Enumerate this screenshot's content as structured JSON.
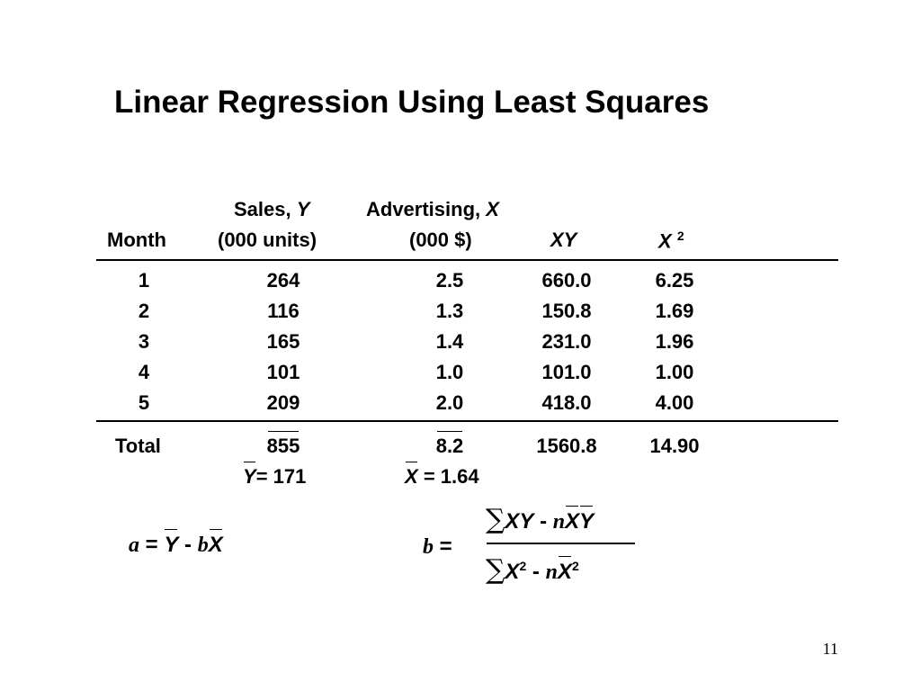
{
  "title": "Linear Regression Using Least Squares",
  "table": {
    "headers": {
      "month": "Month",
      "sales_top": "Sales,",
      "sales_var": "Y",
      "sales_unit": "(000 units)",
      "adv_top": "Advertising,",
      "adv_var": "X",
      "adv_unit": "(000 $)",
      "xy": "XY",
      "x2": "X",
      "x2_exp": "2"
    },
    "rows": [
      {
        "month": "1",
        "sales": "264",
        "adv": "2.5",
        "xy": "660.0",
        "x2": "6.25"
      },
      {
        "month": "2",
        "sales": "116",
        "adv": "1.3",
        "xy": "150.8",
        "x2": "1.69"
      },
      {
        "month": "3",
        "sales": "165",
        "adv": "1.4",
        "xy": "231.0",
        "x2": "1.96"
      },
      {
        "month": "4",
        "sales": "101",
        "adv": "1.0",
        "xy": "101.0",
        "x2": "1.00"
      },
      {
        "month": "5",
        "sales": "209",
        "adv": "2.0",
        "xy": "418.0",
        "x2": "4.00"
      }
    ],
    "total": {
      "label": "Total",
      "sales": "855",
      "adv": "8.2",
      "xy": "1560.8",
      "x2": "14.90"
    },
    "means": {
      "ybar_var": "Y",
      "ybar_val": "= 171",
      "xbar_var": "X",
      "xbar_val": "= 1.64"
    }
  },
  "formula_a": {
    "lhs": "a",
    "eq": "=",
    "ybar": "Y",
    "minus": "-",
    "b": "b",
    "xbar": "X"
  },
  "formula_b": {
    "lhs": "b",
    "eq": "=",
    "sigma": "∑",
    "num_xy": "XY",
    "num_minus": "-",
    "num_n": "n",
    "num_xbar": "X",
    "num_ybar": "Y",
    "den_x": "X",
    "den_exp": "2",
    "den_minus": "-",
    "den_n": "n",
    "den_xbar": "X",
    "den_exp2": "2"
  },
  "page_number": "11"
}
